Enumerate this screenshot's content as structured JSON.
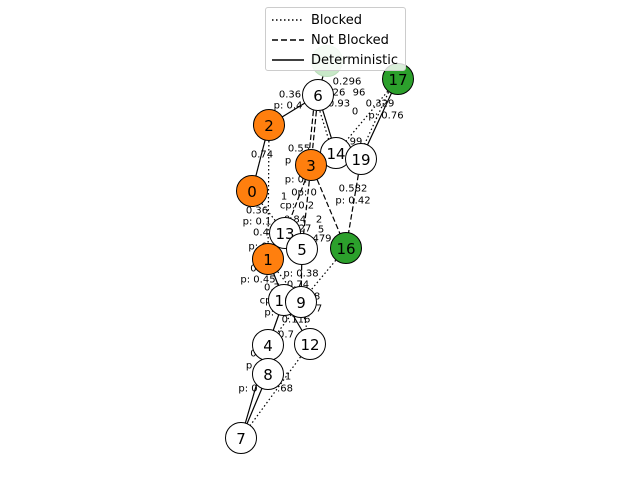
{
  "legend": {
    "blocked": "Blocked",
    "not_blocked": "Not Blocked",
    "deterministic": "Deterministic"
  },
  "colors": {
    "orange": "#ff7f0e",
    "green": "#2ca02c",
    "white": "#ffffff",
    "light_green": "#c8e8c8"
  },
  "nodes": [
    {
      "id": "ghost",
      "label": "",
      "fill": "#c8e8c8"
    },
    {
      "id": "6",
      "label": "6",
      "fill": "#ffffff"
    },
    {
      "id": "17",
      "label": "17",
      "fill": "#2ca02c"
    },
    {
      "id": "2",
      "label": "2",
      "fill": "#ff7f0e"
    },
    {
      "id": "14",
      "label": "14",
      "fill": "#ffffff"
    },
    {
      "id": "19",
      "label": "19",
      "fill": "#ffffff"
    },
    {
      "id": "3",
      "label": "3",
      "fill": "#ff7f0e"
    },
    {
      "id": "0",
      "label": "0",
      "fill": "#ff7f0e"
    },
    {
      "id": "13",
      "label": "13",
      "fill": "#ffffff"
    },
    {
      "id": "5",
      "label": "5",
      "fill": "#ffffff"
    },
    {
      "id": "16",
      "label": "16",
      "fill": "#2ca02c"
    },
    {
      "id": "1",
      "label": "1",
      "fill": "#ff7f0e"
    },
    {
      "id": "10",
      "label": "10",
      "fill": "#ffffff"
    },
    {
      "id": "9",
      "label": "9",
      "fill": "#ffffff"
    },
    {
      "id": "4",
      "label": "4",
      "fill": "#ffffff"
    },
    {
      "id": "12",
      "label": "12",
      "fill": "#ffffff"
    },
    {
      "id": "8",
      "label": "8",
      "fill": "#ffffff"
    },
    {
      "id": "7",
      "label": "7",
      "fill": "#ffffff"
    }
  ],
  "edges": [
    {
      "from": "6",
      "to": "3",
      "style": "dashed"
    },
    {
      "from": "6",
      "to": "3",
      "style": "dashed"
    },
    {
      "from": "6",
      "to": "14",
      "style": "solid"
    },
    {
      "from": "6",
      "to": "14",
      "style": "dotted"
    },
    {
      "from": "6",
      "to": "2",
      "style": "solid"
    },
    {
      "from": "6",
      "to": "ghost",
      "style": "solid"
    },
    {
      "from": "17",
      "to": "19",
      "style": "solid"
    },
    {
      "from": "17",
      "to": "14",
      "style": "dotted"
    },
    {
      "from": "17",
      "to": "19",
      "style": "dotted"
    },
    {
      "from": "2",
      "to": "0",
      "style": "solid"
    },
    {
      "from": "2",
      "to": "1",
      "style": "dotted"
    },
    {
      "from": "14",
      "to": "19",
      "style": "solid"
    },
    {
      "from": "3",
      "to": "13",
      "style": "dashed"
    },
    {
      "from": "3",
      "to": "5",
      "style": "dashed"
    },
    {
      "from": "3",
      "to": "16",
      "style": "dashed"
    },
    {
      "from": "19",
      "to": "16",
      "style": "dashed"
    },
    {
      "from": "0",
      "to": "13",
      "style": "dotted"
    },
    {
      "from": "13",
      "to": "1",
      "style": "solid"
    },
    {
      "from": "5",
      "to": "9",
      "style": "dashed"
    },
    {
      "from": "1",
      "to": "10",
      "style": "solid"
    },
    {
      "from": "1",
      "to": "9",
      "style": "dotted"
    },
    {
      "from": "16",
      "to": "9",
      "style": "dotted"
    },
    {
      "from": "10",
      "to": "4",
      "style": "solid"
    },
    {
      "from": "10",
      "to": "12",
      "style": "solid"
    },
    {
      "from": "9",
      "to": "12",
      "style": "dotted"
    },
    {
      "from": "9",
      "to": "4",
      "style": "dotted"
    },
    {
      "from": "4",
      "to": "8",
      "style": "solid"
    },
    {
      "from": "4",
      "to": "7",
      "style": "solid"
    },
    {
      "from": "8",
      "to": "7",
      "style": "solid"
    },
    {
      "from": "12",
      "to": "7",
      "style": "dotted"
    }
  ],
  "edge_labels": [
    {
      "text": "0.296",
      "anchor": "6",
      "dx": 29,
      "dy": -13
    },
    {
      "text": "0.36",
      "anchor": "6",
      "dx": -28,
      "dy": 0
    },
    {
      "text": "p: 0.4",
      "anchor": "6",
      "dx": -30,
      "dy": 11
    },
    {
      "text": "26",
      "anchor": "6",
      "dx": 21,
      "dy": -2
    },
    {
      "text": "96",
      "anchor": "6",
      "dx": 41,
      "dy": -2
    },
    {
      "text": "0.93",
      "anchor": "6",
      "dx": 21,
      "dy": 9
    },
    {
      "text": "0.329",
      "anchor": "17",
      "dx": -18,
      "dy": 25
    },
    {
      "text": "p: 0.76",
      "anchor": "17",
      "dx": -12,
      "dy": 37
    },
    {
      "text": "0",
      "anchor": "17",
      "dx": -43,
      "dy": 33
    },
    {
      "text": "0.74",
      "anchor": "2",
      "dx": -7,
      "dy": 30
    },
    {
      "text": "0.55",
      "anchor": "3",
      "dx": -12,
      "dy": -16
    },
    {
      "text": "99",
      "anchor": "14",
      "dx": 20,
      "dy": -11
    },
    {
      "text": "p",
      "anchor": "3",
      "dx": -23,
      "dy": -4
    },
    {
      "text": "p: 0.",
      "anchor": "3",
      "dx": -15,
      "dy": 15
    },
    {
      "text": "0.582",
      "anchor": "16",
      "dx": 7,
      "dy": -59
    },
    {
      "text": "p: 0.42",
      "anchor": "16",
      "dx": 7,
      "dy": -47
    },
    {
      "text": "0p: 0",
      "anchor": "3",
      "dx": -7,
      "dy": 28
    },
    {
      "text": "1",
      "anchor": "3",
      "dx": -27,
      "dy": 32
    },
    {
      "text": "cp: 0.2",
      "anchor": "13",
      "dx": 12,
      "dy": -27
    },
    {
      "text": "0.36",
      "anchor": "0",
      "dx": 5,
      "dy": 20
    },
    {
      "text": "p: 0.1",
      "anchor": "0",
      "dx": 5,
      "dy": 31
    },
    {
      "text": "0.84",
      "anchor": "13",
      "dx": 10,
      "dy": -13
    },
    {
      "text": "2",
      "anchor": "13",
      "dx": 34,
      "dy": -13
    },
    {
      "text": "0.4",
      "anchor": "13",
      "dx": -24,
      "dy": 0
    },
    {
      "text": "27",
      "anchor": "13",
      "dx": 20,
      "dy": -4
    },
    {
      "text": "5",
      "anchor": "5",
      "dx": 19,
      "dy": -19
    },
    {
      "text": "479",
      "anchor": "5",
      "dx": 20,
      "dy": -10
    },
    {
      "text": "p: 0",
      "anchor": "1",
      "dx": -10,
      "dy": -12
    },
    {
      "text": "p: 0.38",
      "anchor": "9",
      "dx": 0,
      "dy": -28
    },
    {
      "text": "0.",
      "anchor": "1",
      "dx": -13,
      "dy": 10
    },
    {
      "text": "p: 0.45",
      "anchor": "1",
      "dx": -10,
      "dy": 21
    },
    {
      "text": "0.7",
      "anchor": "10",
      "dx": -12,
      "dy": -12
    },
    {
      "text": "0.74",
      "anchor": "10",
      "dx": 14,
      "dy": -15
    },
    {
      "text": "8",
      "anchor": "9",
      "dx": 16,
      "dy": -5
    },
    {
      "text": "7",
      "anchor": "9",
      "dx": 18,
      "dy": 7
    },
    {
      "text": "cp: 0",
      "anchor": "10",
      "dx": -12,
      "dy": 1
    },
    {
      "text": "p: 0",
      "anchor": "10",
      "dx": -10,
      "dy": 13
    },
    {
      "text": "0.116",
      "anchor": "12",
      "dx": -14,
      "dy": -24
    },
    {
      "text": "0.7",
      "anchor": "4",
      "dx": 18,
      "dy": -10
    },
    {
      "text": "0.",
      "anchor": "8",
      "dx": -13,
      "dy": -20
    },
    {
      "text": "p",
      "anchor": "8",
      "dx": -19,
      "dy": -8
    },
    {
      "text": "0.",
      "anchor": "8",
      "dx": -11,
      "dy": 3
    },
    {
      "text": "1",
      "anchor": "8",
      "dx": 20,
      "dy": 3
    },
    {
      "text": "p: 0",
      "anchor": "8",
      "dx": -20,
      "dy": 15
    },
    {
      "text": ".68",
      "anchor": "8",
      "dx": 17,
      "dy": 15
    }
  ]
}
